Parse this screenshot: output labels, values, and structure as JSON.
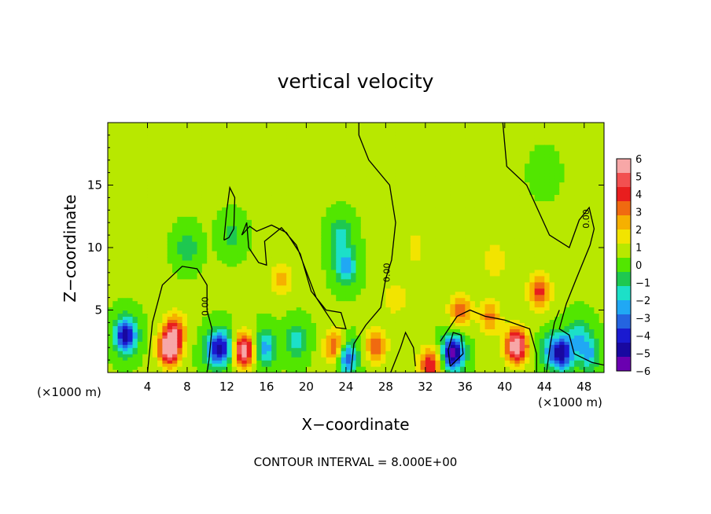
{
  "chart_data": {
    "type": "heatmap",
    "title": "vertical velocity",
    "xlabel": "X−coordinate",
    "ylabel": "Z−coordinate",
    "x_unit_left": "(×1000 m)",
    "x_unit_right": "(×1000 m)",
    "footer": "CONTOUR INTERVAL = 8.000E+00",
    "contour_label": "0.00",
    "xlim": [
      0,
      50
    ],
    "ylim": [
      0,
      20
    ],
    "x_ticks": [
      4,
      8,
      12,
      16,
      20,
      24,
      28,
      32,
      36,
      40,
      44,
      48
    ],
    "y_ticks": [
      5,
      10,
      15
    ],
    "colorbar": {
      "ticks": [
        "6",
        "5",
        "4",
        "3",
        "2",
        "1",
        "0",
        "−1",
        "−2",
        "−3",
        "−4",
        "−5",
        "−6"
      ],
      "range": [
        -6,
        6
      ],
      "colors": [
        "#f7a7a7",
        "#f25050",
        "#e81e1e",
        "#f06a10",
        "#f6b000",
        "#f2e400",
        "#b8e800",
        "#52e600",
        "#1ec850",
        "#1ce0c8",
        "#20a8f4",
        "#2464e0",
        "#1a1ad0",
        "#1808a0",
        "#6a00b0"
      ]
    },
    "features": [
      {
        "x": 1.8,
        "z": 3.0,
        "w": -5.5
      },
      {
        "x": 6.2,
        "z": 2.0,
        "w": 6.0
      },
      {
        "x": 6.8,
        "z": 3.5,
        "w": 3.0
      },
      {
        "x": 10.6,
        "z": 1.8,
        "w": -2.5
      },
      {
        "x": 13.7,
        "z": 1.8,
        "w": 5.5
      },
      {
        "x": 11.6,
        "z": 2.0,
        "w": -4.0
      },
      {
        "x": 15.8,
        "z": 2.0,
        "w": -3.0
      },
      {
        "x": 19.0,
        "z": 2.6,
        "w": -2.0
      },
      {
        "x": 23.0,
        "z": 2.0,
        "w": 4.0
      },
      {
        "x": 24.0,
        "z": 1.3,
        "w": -4.5
      },
      {
        "x": 24.0,
        "z": 8.5,
        "w": -3.0
      },
      {
        "x": 23.5,
        "z": 11.0,
        "w": -2.0
      },
      {
        "x": 17.5,
        "z": 7.5,
        "w": 1.8
      },
      {
        "x": 27.0,
        "z": 2.2,
        "w": 3.0
      },
      {
        "x": 29.0,
        "z": 6.0,
        "w": 1.5
      },
      {
        "x": 31.0,
        "z": 10.0,
        "w": 1.2
      },
      {
        "x": 32.5,
        "z": 0.6,
        "w": 4.0
      },
      {
        "x": 34.8,
        "z": 1.6,
        "w": -6.0
      },
      {
        "x": 35.5,
        "z": 5.0,
        "w": 3.0
      },
      {
        "x": 38.5,
        "z": 4.5,
        "w": 2.5
      },
      {
        "x": 41.2,
        "z": 2.2,
        "w": 6.0
      },
      {
        "x": 39.0,
        "z": 9.0,
        "w": 1.6
      },
      {
        "x": 43.5,
        "z": 6.5,
        "w": 3.5
      },
      {
        "x": 44.5,
        "z": 1.8,
        "w": -2.0
      },
      {
        "x": 45.8,
        "z": 1.6,
        "w": -5.0
      },
      {
        "x": 47.5,
        "z": 3.0,
        "w": -2.0
      },
      {
        "x": 48.5,
        "z": 1.5,
        "w": -2.5
      },
      {
        "x": 8.0,
        "z": 10.0,
        "w": -1.5
      },
      {
        "x": 12.5,
        "z": 11.0,
        "w": -1.2
      },
      {
        "x": 2.5,
        "z": 16.0,
        "w": 0.3
      },
      {
        "x": 44.0,
        "z": 16.0,
        "w": -0.8
      }
    ]
  }
}
